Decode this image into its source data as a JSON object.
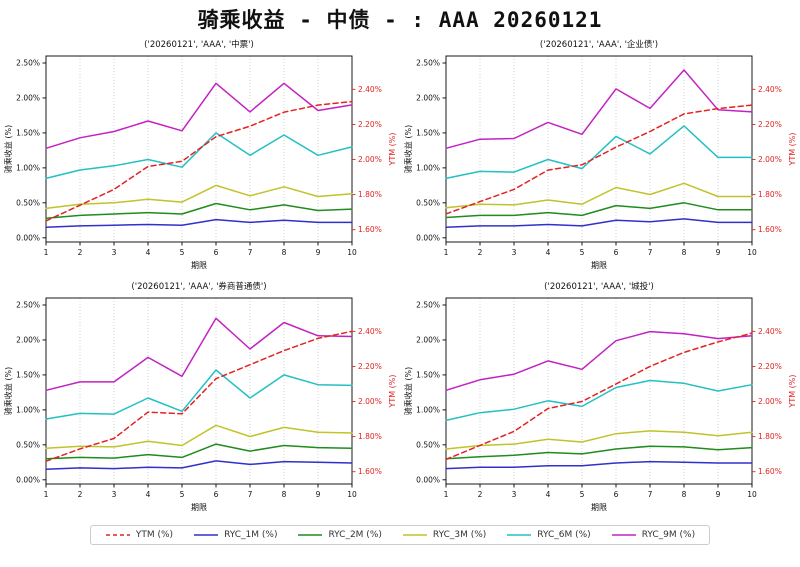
{
  "page": {
    "title": "骑乘收益 - 中债 - : AAA 20260121"
  },
  "axes": {
    "xlabel": "期限",
    "ylabel_left": "骑乘收益 (%)",
    "ylabel_right": "YTM (%)",
    "x_ticks": [
      "1",
      "2",
      "3",
      "4",
      "5",
      "6",
      "7",
      "8",
      "9",
      "10"
    ],
    "left_tick_values": [
      0,
      0.5,
      1.0,
      1.5,
      2.0,
      2.5
    ],
    "left_tick_labels": [
      "0.00%",
      "0.50%",
      "1.00%",
      "1.50%",
      "2.00%",
      "2.50%"
    ],
    "right_tick_values": [
      1.6,
      1.8,
      2.0,
      2.2,
      2.4
    ],
    "right_tick_labels": [
      "1.60%",
      "1.80%",
      "2.00%",
      "2.20%",
      "2.40%"
    ]
  },
  "colors": {
    "ytm": "#e32222",
    "ryc_1m": "#3030cc",
    "ryc_2m": "#1e8c1e",
    "ryc_3m": "#c2c22a",
    "ryc_6m": "#22c0c4",
    "ryc_9m": "#c322c3",
    "grid": "#c9c9c9",
    "axis": "#000000",
    "right_axis_text": "#e32222"
  },
  "legend": [
    {
      "label": "YTM (%)",
      "color_key": "ytm",
      "dashed": true
    },
    {
      "label": "RYC_1M (%)",
      "color_key": "ryc_1m",
      "dashed": false
    },
    {
      "label": "RYC_2M (%)",
      "color_key": "ryc_2m",
      "dashed": false
    },
    {
      "label": "RYC_3M (%)",
      "color_key": "ryc_3m",
      "dashed": false
    },
    {
      "label": "RYC_6M (%)",
      "color_key": "ryc_6m",
      "dashed": false
    },
    {
      "label": "RYC_9M (%)",
      "color_key": "ryc_9m",
      "dashed": false
    }
  ],
  "chart_data": [
    {
      "type": "line",
      "title": "('20260121', 'AAA', '中票')",
      "xlabel": "期限",
      "ylabel_left": "骑乘收益 (%)",
      "ylabel_right": "YTM (%)",
      "x": [
        1,
        2,
        3,
        4,
        5,
        6,
        7,
        8,
        9,
        10
      ],
      "ylim_left": [
        0,
        2.5
      ],
      "ylim_right": [
        1.6,
        2.4
      ],
      "grid": "vertical-dotted",
      "series": [
        {
          "name": "YTM (%)",
          "axis": "right",
          "color_key": "ytm",
          "dashed": true,
          "values": [
            1.65,
            1.74,
            1.83,
            1.96,
            1.99,
            2.13,
            2.19,
            2.27,
            2.31,
            2.33
          ]
        },
        {
          "name": "RYC_1M (%)",
          "axis": "left",
          "color_key": "ryc_1m",
          "dashed": false,
          "values": [
            0.15,
            0.17,
            0.18,
            0.19,
            0.18,
            0.26,
            0.22,
            0.25,
            0.22,
            0.22
          ]
        },
        {
          "name": "RYC_2M (%)",
          "axis": "left",
          "color_key": "ryc_2m",
          "dashed": false,
          "values": [
            0.28,
            0.32,
            0.34,
            0.36,
            0.34,
            0.49,
            0.4,
            0.47,
            0.39,
            0.41
          ]
        },
        {
          "name": "RYC_3M (%)",
          "axis": "left",
          "color_key": "ryc_3m",
          "dashed": false,
          "values": [
            0.42,
            0.48,
            0.5,
            0.55,
            0.51,
            0.75,
            0.6,
            0.73,
            0.59,
            0.63
          ]
        },
        {
          "name": "RYC_6M (%)",
          "axis": "left",
          "color_key": "ryc_6m",
          "dashed": false,
          "values": [
            0.85,
            0.97,
            1.03,
            1.12,
            1.01,
            1.5,
            1.18,
            1.47,
            1.18,
            1.3
          ]
        },
        {
          "name": "RYC_9M (%)",
          "axis": "left",
          "color_key": "ryc_9m",
          "dashed": false,
          "values": [
            1.28,
            1.43,
            1.52,
            1.67,
            1.53,
            2.21,
            1.8,
            2.21,
            1.82,
            1.9
          ]
        }
      ]
    },
    {
      "type": "line",
      "title": "('20260121', 'AAA', '企业债')",
      "xlabel": "期限",
      "ylabel_left": "骑乘收益 (%)",
      "ylabel_right": "YTM (%)",
      "x": [
        1,
        2,
        3,
        4,
        5,
        6,
        7,
        8,
        9,
        10
      ],
      "ylim_left": [
        0,
        2.5
      ],
      "ylim_right": [
        1.6,
        2.4
      ],
      "grid": "vertical-dotted",
      "series": [
        {
          "name": "YTM (%)",
          "axis": "right",
          "color_key": "ytm",
          "dashed": true,
          "values": [
            1.69,
            1.76,
            1.83,
            1.94,
            1.97,
            2.07,
            2.16,
            2.26,
            2.29,
            2.31
          ]
        },
        {
          "name": "RYC_1M (%)",
          "axis": "left",
          "color_key": "ryc_1m",
          "dashed": false,
          "values": [
            0.15,
            0.17,
            0.17,
            0.19,
            0.17,
            0.25,
            0.23,
            0.27,
            0.22,
            0.22
          ]
        },
        {
          "name": "RYC_2M (%)",
          "axis": "left",
          "color_key": "ryc_2m",
          "dashed": false,
          "values": [
            0.29,
            0.32,
            0.32,
            0.36,
            0.32,
            0.46,
            0.42,
            0.5,
            0.4,
            0.4
          ]
        },
        {
          "name": "RYC_3M (%)",
          "axis": "left",
          "color_key": "ryc_3m",
          "dashed": false,
          "values": [
            0.43,
            0.48,
            0.47,
            0.54,
            0.48,
            0.72,
            0.62,
            0.78,
            0.59,
            0.59
          ]
        },
        {
          "name": "RYC_6M (%)",
          "axis": "left",
          "color_key": "ryc_6m",
          "dashed": false,
          "values": [
            0.85,
            0.95,
            0.94,
            1.12,
            0.99,
            1.45,
            1.2,
            1.6,
            1.15,
            1.15
          ]
        },
        {
          "name": "RYC_9M (%)",
          "axis": "left",
          "color_key": "ryc_9m",
          "dashed": false,
          "values": [
            1.28,
            1.41,
            1.42,
            1.65,
            1.48,
            2.13,
            1.85,
            2.4,
            1.83,
            1.8
          ]
        }
      ]
    },
    {
      "type": "line",
      "title": "('20260121', 'AAA', '券商普通债')",
      "xlabel": "期限",
      "ylabel_left": "骑乘收益 (%)",
      "ylabel_right": "YTM (%)",
      "x": [
        1,
        2,
        3,
        4,
        5,
        6,
        7,
        8,
        9,
        10
      ],
      "ylim_left": [
        0,
        2.5
      ],
      "ylim_right": [
        1.6,
        2.4
      ],
      "grid": "vertical-dotted",
      "series": [
        {
          "name": "YTM (%)",
          "axis": "right",
          "color_key": "ytm",
          "dashed": true,
          "values": [
            1.66,
            1.73,
            1.79,
            1.94,
            1.93,
            2.13,
            2.21,
            2.29,
            2.36,
            2.4
          ]
        },
        {
          "name": "RYC_1M (%)",
          "axis": "left",
          "color_key": "ryc_1m",
          "dashed": false,
          "values": [
            0.15,
            0.17,
            0.16,
            0.18,
            0.17,
            0.27,
            0.22,
            0.26,
            0.25,
            0.24
          ]
        },
        {
          "name": "RYC_2M (%)",
          "axis": "left",
          "color_key": "ryc_2m",
          "dashed": false,
          "values": [
            0.3,
            0.32,
            0.31,
            0.36,
            0.32,
            0.51,
            0.41,
            0.49,
            0.46,
            0.45
          ]
        },
        {
          "name": "RYC_3M (%)",
          "axis": "left",
          "color_key": "ryc_3m",
          "dashed": false,
          "values": [
            0.45,
            0.48,
            0.47,
            0.55,
            0.49,
            0.78,
            0.62,
            0.75,
            0.68,
            0.67
          ]
        },
        {
          "name": "RYC_6M (%)",
          "axis": "left",
          "color_key": "ryc_6m",
          "dashed": false,
          "values": [
            0.87,
            0.95,
            0.94,
            1.17,
            0.98,
            1.57,
            1.17,
            1.5,
            1.36,
            1.35
          ]
        },
        {
          "name": "RYC_9M (%)",
          "axis": "left",
          "color_key": "ryc_9m",
          "dashed": false,
          "values": [
            1.28,
            1.4,
            1.4,
            1.75,
            1.48,
            2.31,
            1.87,
            2.25,
            2.06,
            2.05
          ]
        }
      ]
    },
    {
      "type": "line",
      "title": "('20260121', 'AAA', '城投')",
      "xlabel": "期限",
      "ylabel_left": "骑乘收益 (%)",
      "ylabel_right": "YTM (%)",
      "x": [
        1,
        2,
        3,
        4,
        5,
        6,
        7,
        8,
        9,
        10
      ],
      "ylim_left": [
        0,
        2.5
      ],
      "ylim_right": [
        1.6,
        2.4
      ],
      "grid": "vertical-dotted",
      "series": [
        {
          "name": "YTM (%)",
          "axis": "right",
          "color_key": "ytm",
          "dashed": true,
          "values": [
            1.67,
            1.75,
            1.83,
            1.96,
            2.0,
            2.1,
            2.2,
            2.28,
            2.34,
            2.39
          ]
        },
        {
          "name": "RYC_1M (%)",
          "axis": "left",
          "color_key": "ryc_1m",
          "dashed": false,
          "values": [
            0.16,
            0.18,
            0.18,
            0.2,
            0.2,
            0.24,
            0.26,
            0.25,
            0.24,
            0.24
          ]
        },
        {
          "name": "RYC_2M (%)",
          "axis": "left",
          "color_key": "ryc_2m",
          "dashed": false,
          "values": [
            0.3,
            0.33,
            0.35,
            0.39,
            0.37,
            0.44,
            0.48,
            0.47,
            0.43,
            0.46
          ]
        },
        {
          "name": "RYC_3M (%)",
          "axis": "left",
          "color_key": "ryc_3m",
          "dashed": false,
          "values": [
            0.44,
            0.49,
            0.51,
            0.58,
            0.54,
            0.66,
            0.7,
            0.68,
            0.63,
            0.68
          ]
        },
        {
          "name": "RYC_6M (%)",
          "axis": "left",
          "color_key": "ryc_6m",
          "dashed": false,
          "values": [
            0.85,
            0.96,
            1.01,
            1.13,
            1.05,
            1.32,
            1.42,
            1.38,
            1.27,
            1.36
          ]
        },
        {
          "name": "RYC_9M (%)",
          "axis": "left",
          "color_key": "ryc_9m",
          "dashed": false,
          "values": [
            1.28,
            1.43,
            1.51,
            1.7,
            1.58,
            1.99,
            2.12,
            2.09,
            2.02,
            2.06
          ]
        }
      ]
    }
  ]
}
